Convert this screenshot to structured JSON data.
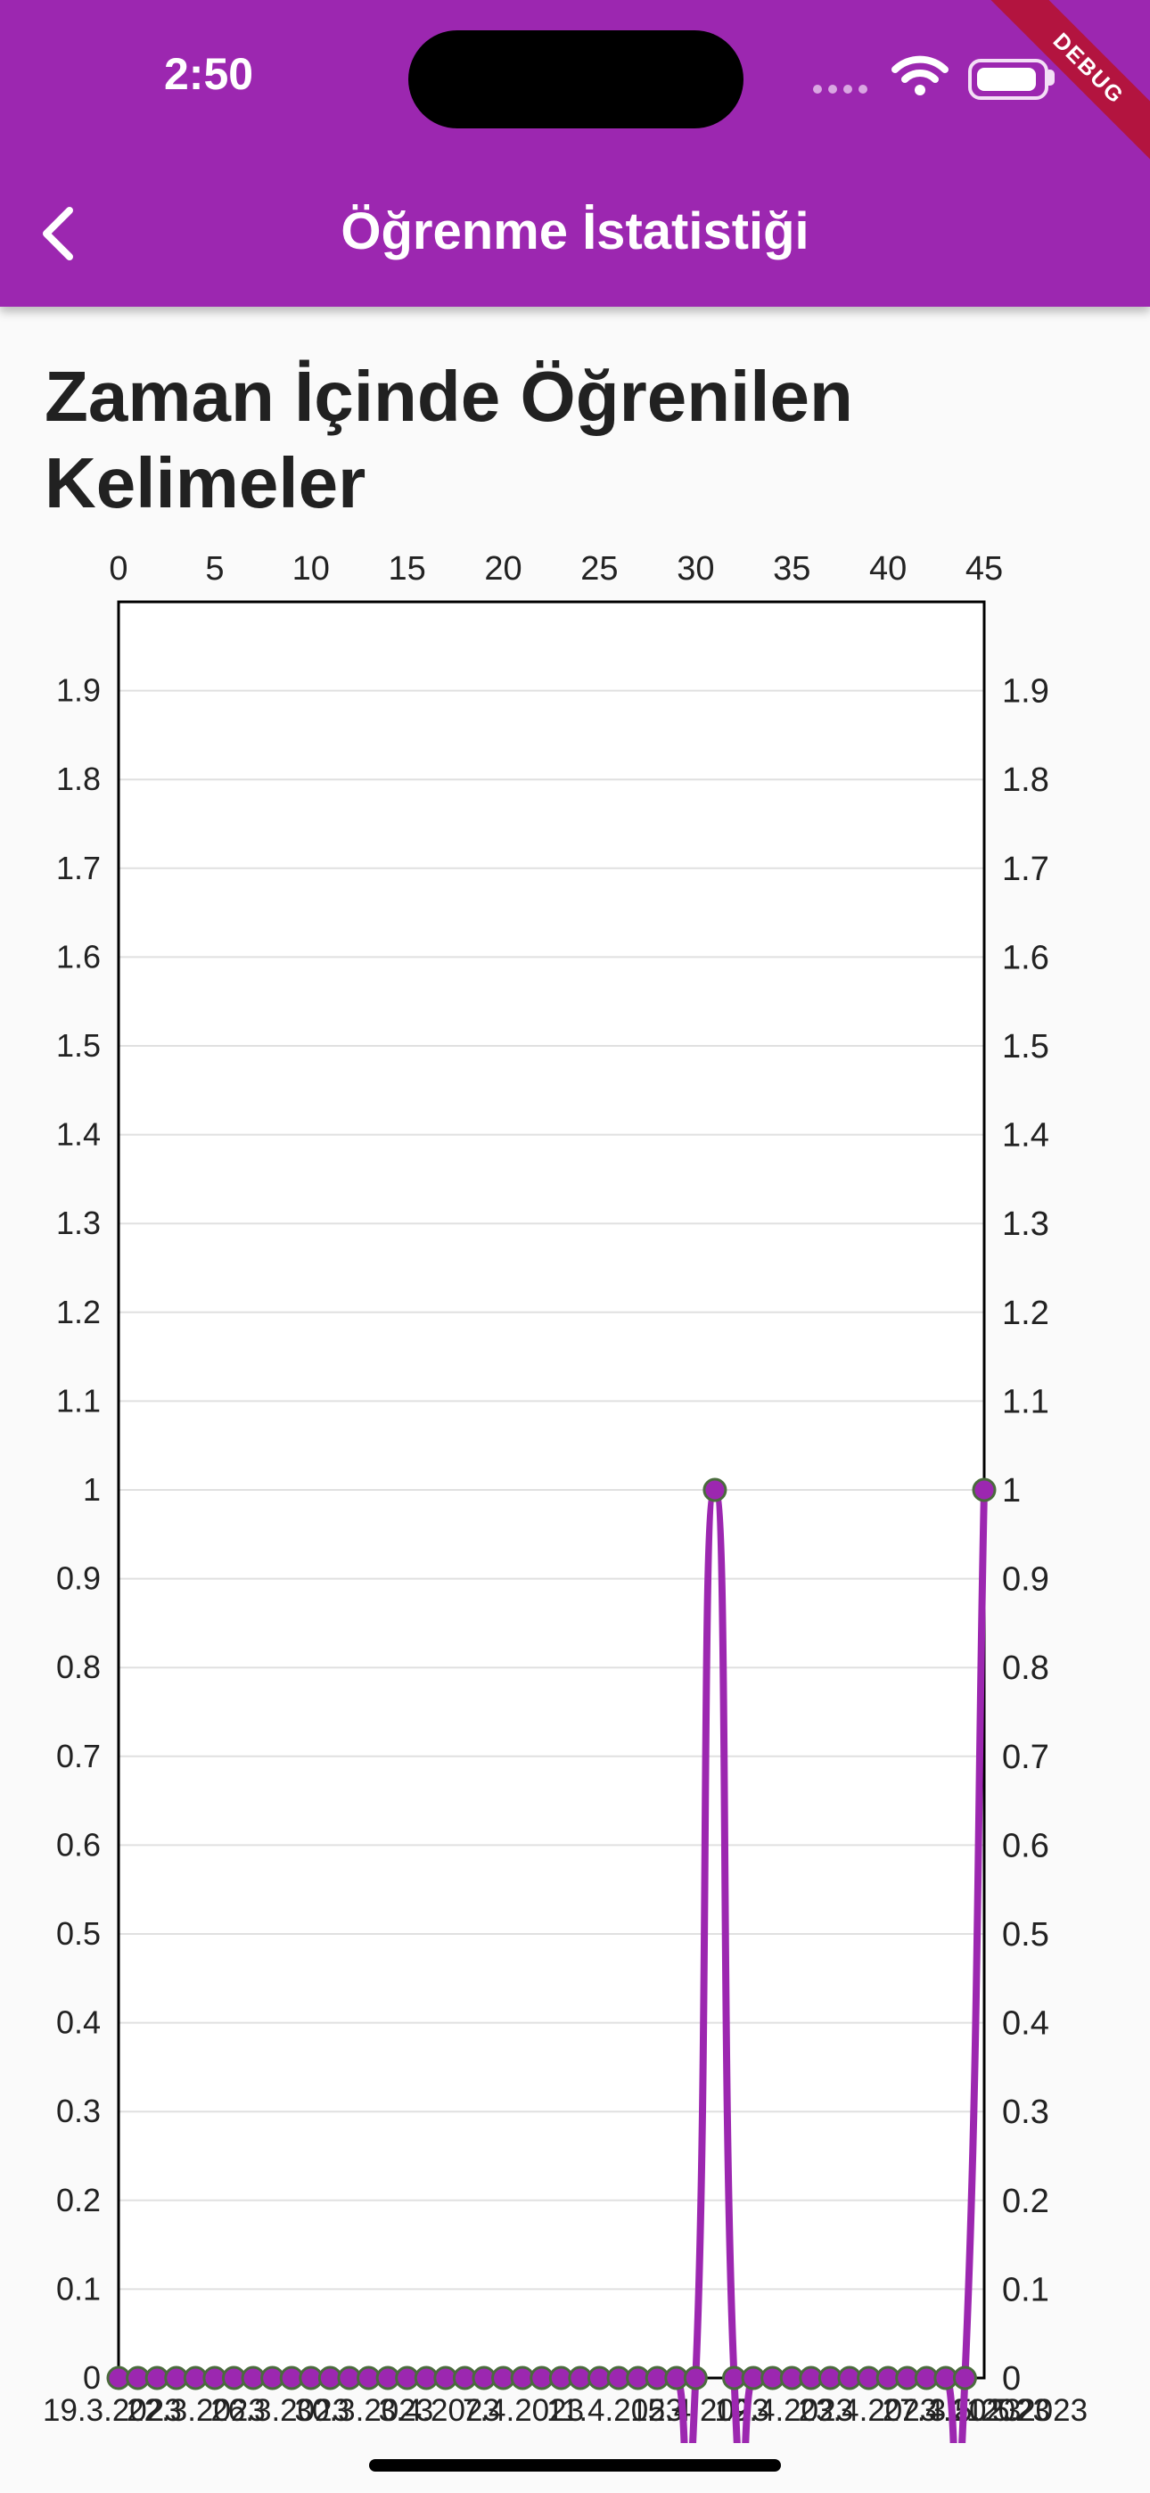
{
  "status_bar": {
    "time": "2:50",
    "debug_label": "DEBUG"
  },
  "app_bar": {
    "title": "Öğrenme İstatistiği",
    "back_icon": "chevron-left-icon"
  },
  "page": {
    "title": "Zaman İçinde Öğrenilen Kelimeler"
  },
  "colors": {
    "accent": "#9c27b0",
    "marker_stroke": "#4a6b3d",
    "grid": "#e0e0e0"
  },
  "chart_data": {
    "type": "line",
    "title": "",
    "xlabel": "",
    "ylabel": "",
    "xlim": [
      0,
      45
    ],
    "ylim": [
      0,
      2
    ],
    "top_ticks": [
      "0",
      "5",
      "10",
      "15",
      "20",
      "25",
      "30",
      "35",
      "40",
      "45"
    ],
    "y_ticks": [
      "0",
      "0.1",
      "0.2",
      "0.3",
      "0.4",
      "0.5",
      "0.6",
      "0.7",
      "0.8",
      "0.9",
      "1",
      "1.1",
      "1.2",
      "1.3",
      "1.4",
      "1.5",
      "1.6",
      "1.7",
      "1.8",
      "1.9"
    ],
    "y_ticks_right": true,
    "grid": "horizontal",
    "x_label_text": "19.3.2023 22.3.2023 ... 3.5.2023 (overlapping)",
    "bottom_labels": [
      "19.3.2023",
      "22.3.2023",
      "26.3.2023",
      "30.3.2023",
      "3.4.2023",
      "7.4.2023",
      "11.4.2023",
      "15.4.2023",
      "19.4.2023",
      "23.4.2023",
      "27.4.2023",
      "1.5.2023",
      "3.5.2023"
    ],
    "curved": true,
    "series": [
      {
        "values": [
          0,
          0,
          0,
          0,
          0,
          0,
          0,
          0,
          0,
          0,
          0,
          0,
          0,
          0,
          0,
          0,
          0,
          0,
          0,
          0,
          0,
          0,
          0,
          0,
          0,
          0,
          0,
          0,
          0,
          0,
          0,
          1,
          0,
          0,
          0,
          0,
          0,
          0,
          0,
          0,
          0,
          0,
          0,
          0,
          0,
          1
        ]
      }
    ]
  }
}
